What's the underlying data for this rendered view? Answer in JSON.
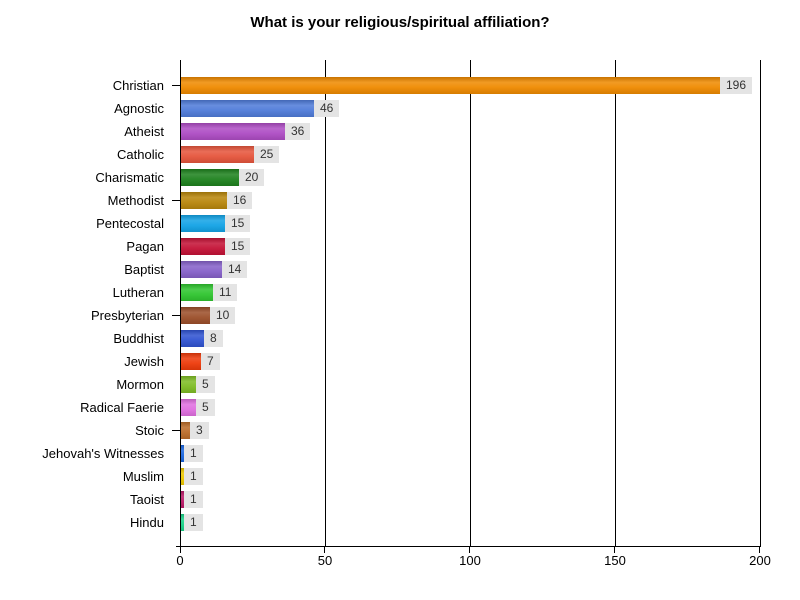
{
  "title": "What is your religious/spiritual affiliation?",
  "chart_data": {
    "type": "bar",
    "orientation": "horizontal",
    "title": "What is your religious/spiritual affiliation?",
    "categories": [
      "Christian",
      "Agnostic",
      "Atheist",
      "Catholic",
      "Charismatic",
      "Methodist",
      "Pentecostal",
      "Pagan",
      "Baptist",
      "Lutheran",
      "Presbyterian",
      "Buddhist",
      "Jewish",
      "Mormon",
      "Radical Faerie",
      "Stoic",
      "Jehovah's Witnesses",
      "Muslim",
      "Taoist",
      "Hindu"
    ],
    "values": [
      196,
      46,
      36,
      25,
      20,
      16,
      15,
      15,
      14,
      11,
      10,
      8,
      7,
      5,
      5,
      3,
      1,
      1,
      1,
      1
    ],
    "bar_colors": [
      "#ef8a00",
      "#4f7bd9",
      "#ae4cc4",
      "#e6553c",
      "#1e821e",
      "#b8860b",
      "#12a3e6",
      "#c41236",
      "#8661c9",
      "#2fc52f",
      "#9c4f2a",
      "#3053d1",
      "#ee3a0a",
      "#7ebc24",
      "#e06fe0",
      "#bc6d2a",
      "#1a66e0",
      "#eec900",
      "#bc1a68",
      "#1ad389"
    ],
    "xlabel": "",
    "ylabel": "",
    "xlim": [
      0,
      200
    ],
    "x_ticks": [
      0,
      50,
      100,
      150,
      200
    ],
    "grid": true,
    "gridline_color": "#000000",
    "axis_color": "#000000",
    "value_label_bg": "#e4e4e4",
    "value_label_color": "#333333",
    "category_tick_every": 5,
    "legend_position": "none"
  }
}
